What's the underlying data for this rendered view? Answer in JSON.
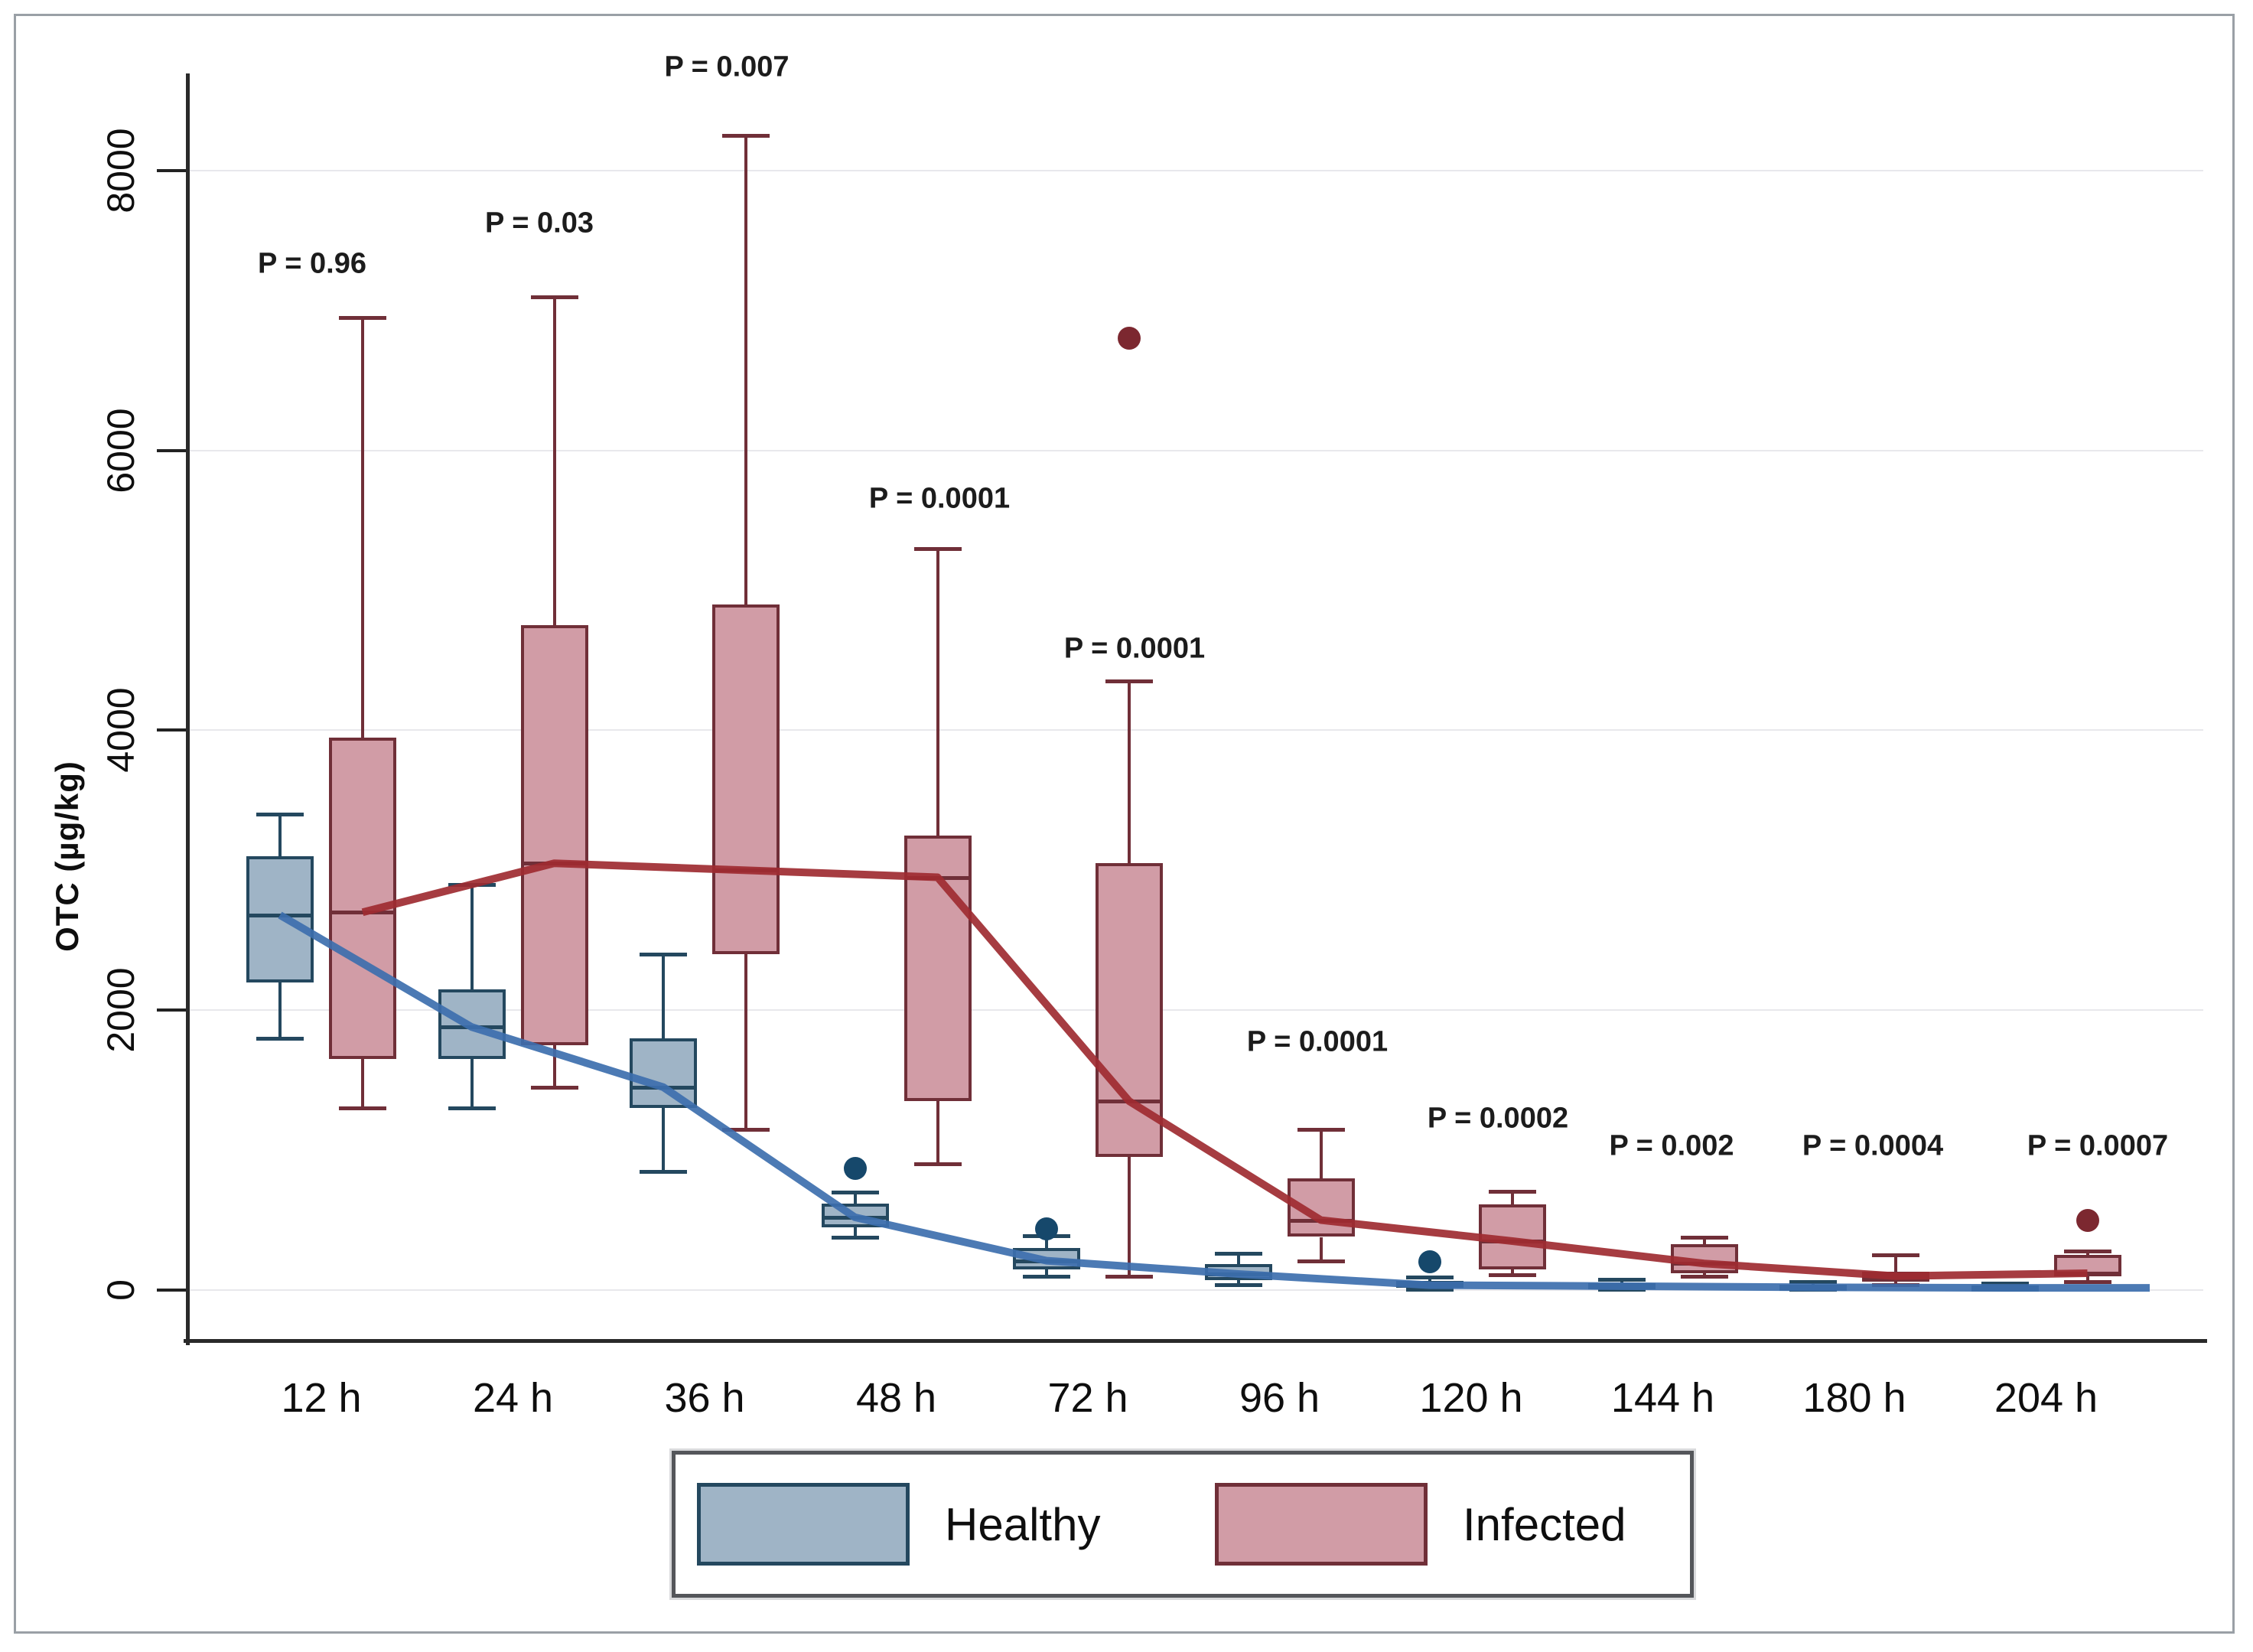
{
  "figure": {
    "background": "#ffffff",
    "border_color": "#9aa0a6"
  },
  "legend": {
    "items": [
      {
        "label": "Healthy",
        "fill": "#9fb4c6",
        "border": "#24485f"
      },
      {
        "label": "Infected",
        "fill": "#d19ca6",
        "border": "#702f38"
      }
    ]
  },
  "chart_data": {
    "type": "grouped-boxplot-with-median-lines",
    "title": "",
    "xlabel": "",
    "ylabel": "OTC (µg/kg)",
    "y_ticks": [
      0,
      2000,
      4000,
      6000,
      8000
    ],
    "ylim": [
      0,
      8950
    ],
    "grid": true,
    "legend_position": "bottom",
    "categories": [
      "12 h",
      "24 h",
      "36 h",
      "48 h",
      "72 h",
      "96 h",
      "120 h",
      "144 h",
      "180 h",
      "204 h"
    ],
    "p_values": [
      "P = 0.96",
      "P = 0.03",
      "P = 0.007",
      "P = 0.0001",
      "P = 0.0001",
      "P = 0.0001",
      "P = 0.0002",
      "P = 0.002",
      "P = 0.0004",
      "P = 0.0007"
    ],
    "series": [
      {
        "name": "Healthy",
        "fill": "#9fb4c6",
        "border": "#24485f",
        "line_color": "#3d6fae",
        "dot_color": "#16486b",
        "medians": [
          2680,
          1880,
          1450,
          520,
          210,
          115,
          35,
          28,
          20,
          16
        ],
        "boxes": [
          {
            "category": "12 h",
            "low": 1800,
            "q1": 2200,
            "med": 2680,
            "q3": 3100,
            "high": 3400,
            "outliers": []
          },
          {
            "category": "24 h",
            "low": 1300,
            "q1": 1650,
            "med": 1880,
            "q3": 2150,
            "high": 2900,
            "outliers": []
          },
          {
            "category": "36 h",
            "low": 850,
            "q1": 1300,
            "med": 1450,
            "q3": 1800,
            "high": 2400,
            "outliers": []
          },
          {
            "category": "48 h",
            "low": 380,
            "q1": 450,
            "med": 520,
            "q3": 620,
            "high": 700,
            "outliers": [
              870
            ]
          },
          {
            "category": "72 h",
            "low": 100,
            "q1": 150,
            "med": 210,
            "q3": 300,
            "high": 390,
            "outliers": [
              440
            ]
          },
          {
            "category": "96 h",
            "low": 40,
            "q1": 70,
            "med": 115,
            "q3": 185,
            "high": 260,
            "outliers": []
          },
          {
            "category": "120 h",
            "low": 5,
            "q1": 15,
            "med": 35,
            "q3": 65,
            "high": 95,
            "outliers": [
              200
            ]
          },
          {
            "category": "144 h",
            "low": 5,
            "q1": 12,
            "med": 28,
            "q3": 50,
            "high": 75,
            "outliers": []
          },
          {
            "category": "180 h",
            "low": 3,
            "q1": 8,
            "med": 20,
            "q3": 38,
            "high": 58,
            "outliers": []
          },
          {
            "category": "204 h",
            "low": 3,
            "q1": 8,
            "med": 16,
            "q3": 32,
            "high": 50,
            "outliers": []
          }
        ]
      },
      {
        "name": "Infected",
        "fill": "#d19ca6",
        "border": "#702f38",
        "line_color": "#9e2b31",
        "dot_color": "#7c2830",
        "medians": [
          2700,
          3050,
          3000,
          2950,
          1350,
          500,
          350,
          190,
          100,
          120
        ],
        "boxes": [
          {
            "category": "12 h",
            "low": 1300,
            "q1": 1650,
            "med": 2700,
            "q3": 3950,
            "high": 6950,
            "outliers": []
          },
          {
            "category": "24 h",
            "low": 1450,
            "q1": 1750,
            "med": 3050,
            "q3": 4750,
            "high": 7100,
            "outliers": []
          },
          {
            "category": "36 h",
            "low": 1150,
            "q1": 2400,
            "med": 3000,
            "q3": 4900,
            "high": 8250,
            "outliers": []
          },
          {
            "category": "48 h",
            "low": 900,
            "q1": 1350,
            "med": 2950,
            "q3": 3250,
            "high": 5300,
            "outliers": []
          },
          {
            "category": "72 h",
            "low": 100,
            "q1": 950,
            "med": 1350,
            "q3": 3050,
            "high": 4350,
            "outliers": [
              6800
            ]
          },
          {
            "category": "96 h",
            "low": 210,
            "q1": 380,
            "med": 500,
            "q3": 800,
            "high": 1150,
            "outliers": []
          },
          {
            "category": "120 h",
            "low": 110,
            "q1": 150,
            "med": 350,
            "q3": 610,
            "high": 705,
            "outliers": []
          },
          {
            "category": "144 h",
            "low": 100,
            "q1": 120,
            "med": 190,
            "q3": 330,
            "high": 380,
            "outliers": []
          },
          {
            "category": "180 h",
            "low": 40,
            "q1": 60,
            "med": 100,
            "q3": 130,
            "high": 250,
            "outliers": []
          },
          {
            "category": "204 h",
            "low": 60,
            "q1": 100,
            "med": 120,
            "q3": 250,
            "high": 280,
            "outliers": [
              500
            ]
          }
        ]
      }
    ]
  }
}
